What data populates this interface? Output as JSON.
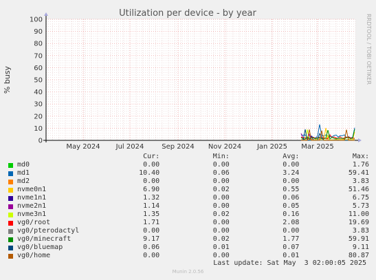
{
  "chart_data": {
    "type": "line",
    "title": "Utilization per device - by year",
    "ylabel": "% busy",
    "ylim": [
      0,
      100
    ],
    "yticks": [
      0,
      10,
      20,
      30,
      40,
      50,
      60,
      70,
      80,
      90,
      100
    ],
    "xticks": [
      "May 2024",
      "Jul 2024",
      "Sep 2024",
      "Nov 2024",
      "Jan 2025",
      "Mar 2025"
    ],
    "grid": true,
    "legend_placement": "bottom",
    "columns": [
      "Cur:",
      "Min:",
      "Avg:",
      "Max:"
    ],
    "series": [
      {
        "name": "md0",
        "color": "#00cc00",
        "cur": "0.00",
        "min": "0.00",
        "avg": "0.00",
        "max": "1.76"
      },
      {
        "name": "md1",
        "color": "#0066b3",
        "cur": "10.40",
        "min": "0.06",
        "avg": "3.24",
        "max": "59.41"
      },
      {
        "name": "md2",
        "color": "#ff8000",
        "cur": "0.00",
        "min": "0.00",
        "avg": "0.00",
        "max": "3.83"
      },
      {
        "name": "nvme0n1",
        "color": "#ffcc00",
        "cur": "6.90",
        "min": "0.02",
        "avg": "0.55",
        "max": "51.46"
      },
      {
        "name": "nvme1n1",
        "color": "#330099",
        "cur": "1.32",
        "min": "0.00",
        "avg": "0.06",
        "max": "6.75"
      },
      {
        "name": "nvme2n1",
        "color": "#990099",
        "cur": "1.14",
        "min": "0.00",
        "avg": "0.05",
        "max": "5.73"
      },
      {
        "name": "nvme3n1",
        "color": "#ccff00",
        "cur": "1.35",
        "min": "0.02",
        "avg": "0.16",
        "max": "11.00"
      },
      {
        "name": "vg0/root",
        "color": "#ff0000",
        "cur": "1.71",
        "min": "0.00",
        "avg": "2.08",
        "max": "19.69"
      },
      {
        "name": "vg0/pterodactyl",
        "color": "#808080",
        "cur": "0.00",
        "min": "0.00",
        "avg": "0.00",
        "max": "3.83"
      },
      {
        "name": "vg0/minecraft",
        "color": "#008f00",
        "cur": "9.17",
        "min": "0.02",
        "avg": "1.77",
        "max": "59.91"
      },
      {
        "name": "vg0/bluemap",
        "color": "#00487d",
        "cur": "0.06",
        "min": "0.01",
        "avg": "0.07",
        "max": "9.11"
      },
      {
        "name": "vg0/home",
        "color": "#b35a00",
        "cur": "0.00",
        "min": "0.00",
        "avg": "0.01",
        "max": "80.87"
      }
    ]
  },
  "footer": {
    "last_update": "Last update: Sat May  3 02:00:05 2025",
    "version": "Munin 2.0.56"
  },
  "watermark": "RRDTOOL / TOBI OETIKER"
}
